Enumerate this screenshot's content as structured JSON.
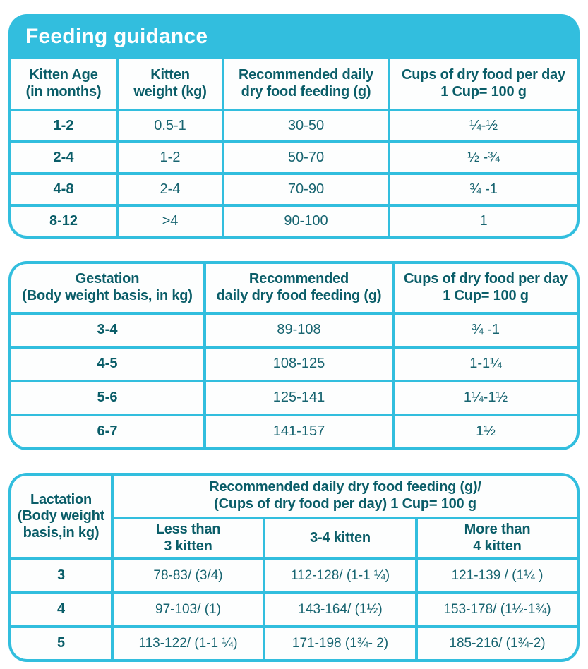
{
  "title": "Feeding guidance",
  "colors": {
    "accent_cyan": "#32BEDE",
    "header_text": "#0A5D68",
    "value_text": "#176470",
    "title_text": "#FFFFFF",
    "cell_background": "#FDFEFE"
  },
  "chart_data": [
    {
      "type": "table",
      "name": "kitten-feeding-guide",
      "title": "Feeding guidance",
      "columns": [
        "Kitten Age\n(in months)",
        "Kitten\nweight (kg)",
        "Recommended daily\ndry food feeding (g)",
        "Cups of dry food per day\n1 Cup= 100 g"
      ],
      "rows": [
        [
          "1-2",
          "0.5-1",
          "30-50",
          "¼-½"
        ],
        [
          "2-4",
          "1-2",
          "50-70",
          "½ -¾"
        ],
        [
          "4-8",
          "2-4",
          "70-90",
          "¾ -1"
        ],
        [
          "8-12",
          ">4",
          "90-100",
          "1"
        ]
      ]
    },
    {
      "type": "table",
      "name": "gestation-feeding-guide",
      "columns": [
        "Gestation\n(Body weight basis, in kg)",
        "Recommended\ndaily dry food feeding (g)",
        "Cups of dry food per day\n1 Cup= 100 g"
      ],
      "rows": [
        [
          "3-4",
          "89-108",
          "¾ -1"
        ],
        [
          "4-5",
          "108-125",
          "1-1¼"
        ],
        [
          "5-6",
          "125-141",
          "1¼-1½"
        ],
        [
          "6-7",
          "141-157",
          "1½"
        ]
      ]
    },
    {
      "type": "table",
      "name": "lactation-feeding-guide",
      "row_header": "Lactation\n(Body weight\nbasis,in kg)",
      "spanning_header": "Recommended daily dry food feeding (g)/\n(Cups of dry food per day) 1 Cup= 100 g",
      "columns": [
        "Less than\n3 kitten",
        "3-4 kitten",
        "More than\n4 kitten"
      ],
      "rows": [
        [
          "3",
          "78-83/ (3/4)",
          "112-128/ (1-1 ¼)",
          "121-139 / (1¼ )"
        ],
        [
          "4",
          "97-103/ (1)",
          "143-164/ (1½)",
          "153-178/ (1½-1¾)"
        ],
        [
          "5",
          "113-122/ (1-1 ¼)",
          "171-198 (1¾- 2)",
          "185-216/ (1¾-2)"
        ]
      ]
    }
  ]
}
